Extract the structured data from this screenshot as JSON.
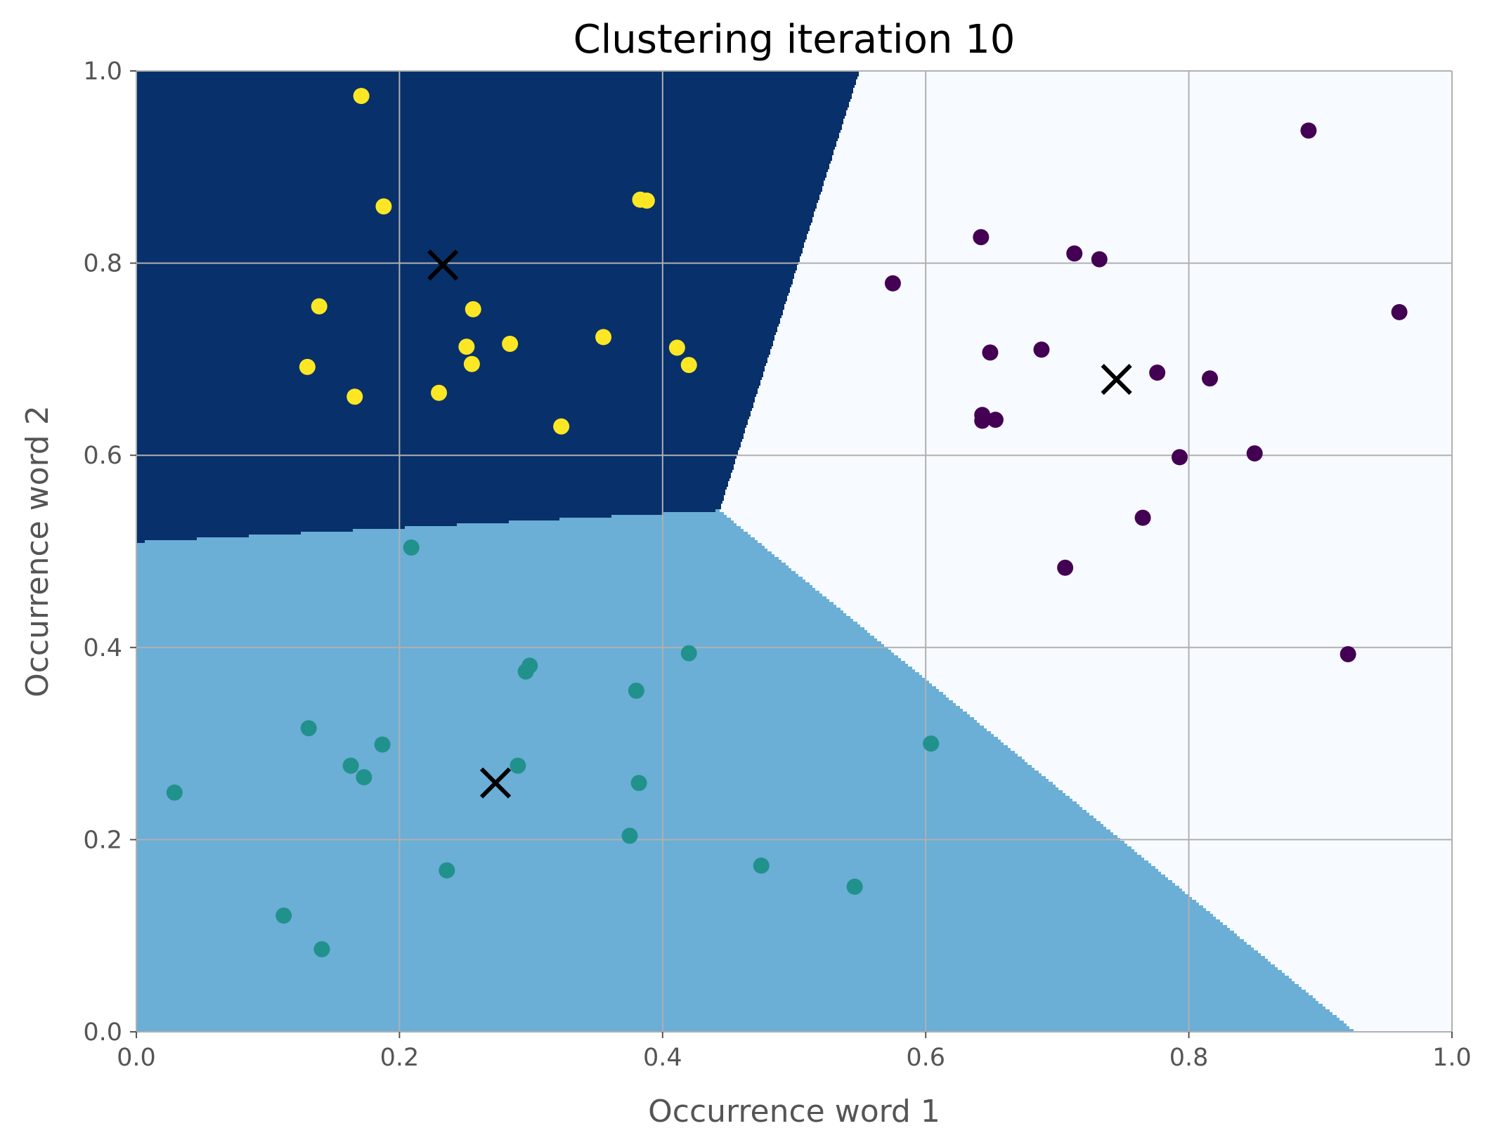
{
  "chart_data": {
    "type": "scatter",
    "title": "Clustering iteration 10",
    "xlabel": "Occurrence word 1",
    "ylabel": "Occurrence word 2",
    "xlim": [
      0.0,
      1.0
    ],
    "ylim": [
      0.0,
      1.0
    ],
    "x_ticks": [
      "0.0",
      "0.2",
      "0.4",
      "0.6",
      "0.8",
      "1.0"
    ],
    "y_ticks": [
      "0.0",
      "0.2",
      "0.4",
      "0.6",
      "0.8",
      "1.0"
    ],
    "grid": true,
    "region_colors": [
      "#08306b",
      "#6baed6",
      "#f7fbff"
    ],
    "clusters": [
      {
        "color": "#fde725",
        "region_color": "#08306b",
        "centroid": [
          0.233,
          0.798
        ],
        "points": [
          [
            0.171,
            0.974
          ],
          [
            0.188,
            0.859
          ],
          [
            0.383,
            0.866
          ],
          [
            0.388,
            0.865
          ],
          [
            0.139,
            0.755
          ],
          [
            0.256,
            0.752
          ],
          [
            0.13,
            0.692
          ],
          [
            0.251,
            0.713
          ],
          [
            0.284,
            0.716
          ],
          [
            0.255,
            0.695
          ],
          [
            0.355,
            0.723
          ],
          [
            0.411,
            0.712
          ],
          [
            0.42,
            0.694
          ],
          [
            0.166,
            0.661
          ],
          [
            0.23,
            0.665
          ],
          [
            0.323,
            0.63
          ]
        ]
      },
      {
        "color": "#21918c",
        "region_color": "#6baed6",
        "centroid": [
          0.273,
          0.259
        ],
        "points": [
          [
            0.209,
            0.504
          ],
          [
            0.42,
            0.394
          ],
          [
            0.299,
            0.381
          ],
          [
            0.296,
            0.375
          ],
          [
            0.38,
            0.355
          ],
          [
            0.131,
            0.316
          ],
          [
            0.187,
            0.299
          ],
          [
            0.163,
            0.277
          ],
          [
            0.173,
            0.265
          ],
          [
            0.29,
            0.277
          ],
          [
            0.382,
            0.259
          ],
          [
            0.029,
            0.249
          ],
          [
            0.604,
            0.3
          ],
          [
            0.375,
            0.204
          ],
          [
            0.475,
            0.173
          ],
          [
            0.236,
            0.168
          ],
          [
            0.546,
            0.151
          ],
          [
            0.112,
            0.121
          ],
          [
            0.141,
            0.086
          ]
        ]
      },
      {
        "color": "#440154",
        "region_color": "#f7fbff",
        "centroid": [
          0.745,
          0.679
        ],
        "points": [
          [
            0.891,
            0.938
          ],
          [
            0.642,
            0.827
          ],
          [
            0.713,
            0.81
          ],
          [
            0.732,
            0.804
          ],
          [
            0.575,
            0.779
          ],
          [
            0.96,
            0.749
          ],
          [
            0.649,
            0.707
          ],
          [
            0.688,
            0.71
          ],
          [
            0.776,
            0.686
          ],
          [
            0.816,
            0.68
          ],
          [
            0.643,
            0.642
          ],
          [
            0.643,
            0.636
          ],
          [
            0.653,
            0.637
          ],
          [
            0.793,
            0.598
          ],
          [
            0.85,
            0.602
          ],
          [
            0.765,
            0.535
          ],
          [
            0.706,
            0.483
          ],
          [
            0.921,
            0.393
          ]
        ]
      }
    ]
  }
}
